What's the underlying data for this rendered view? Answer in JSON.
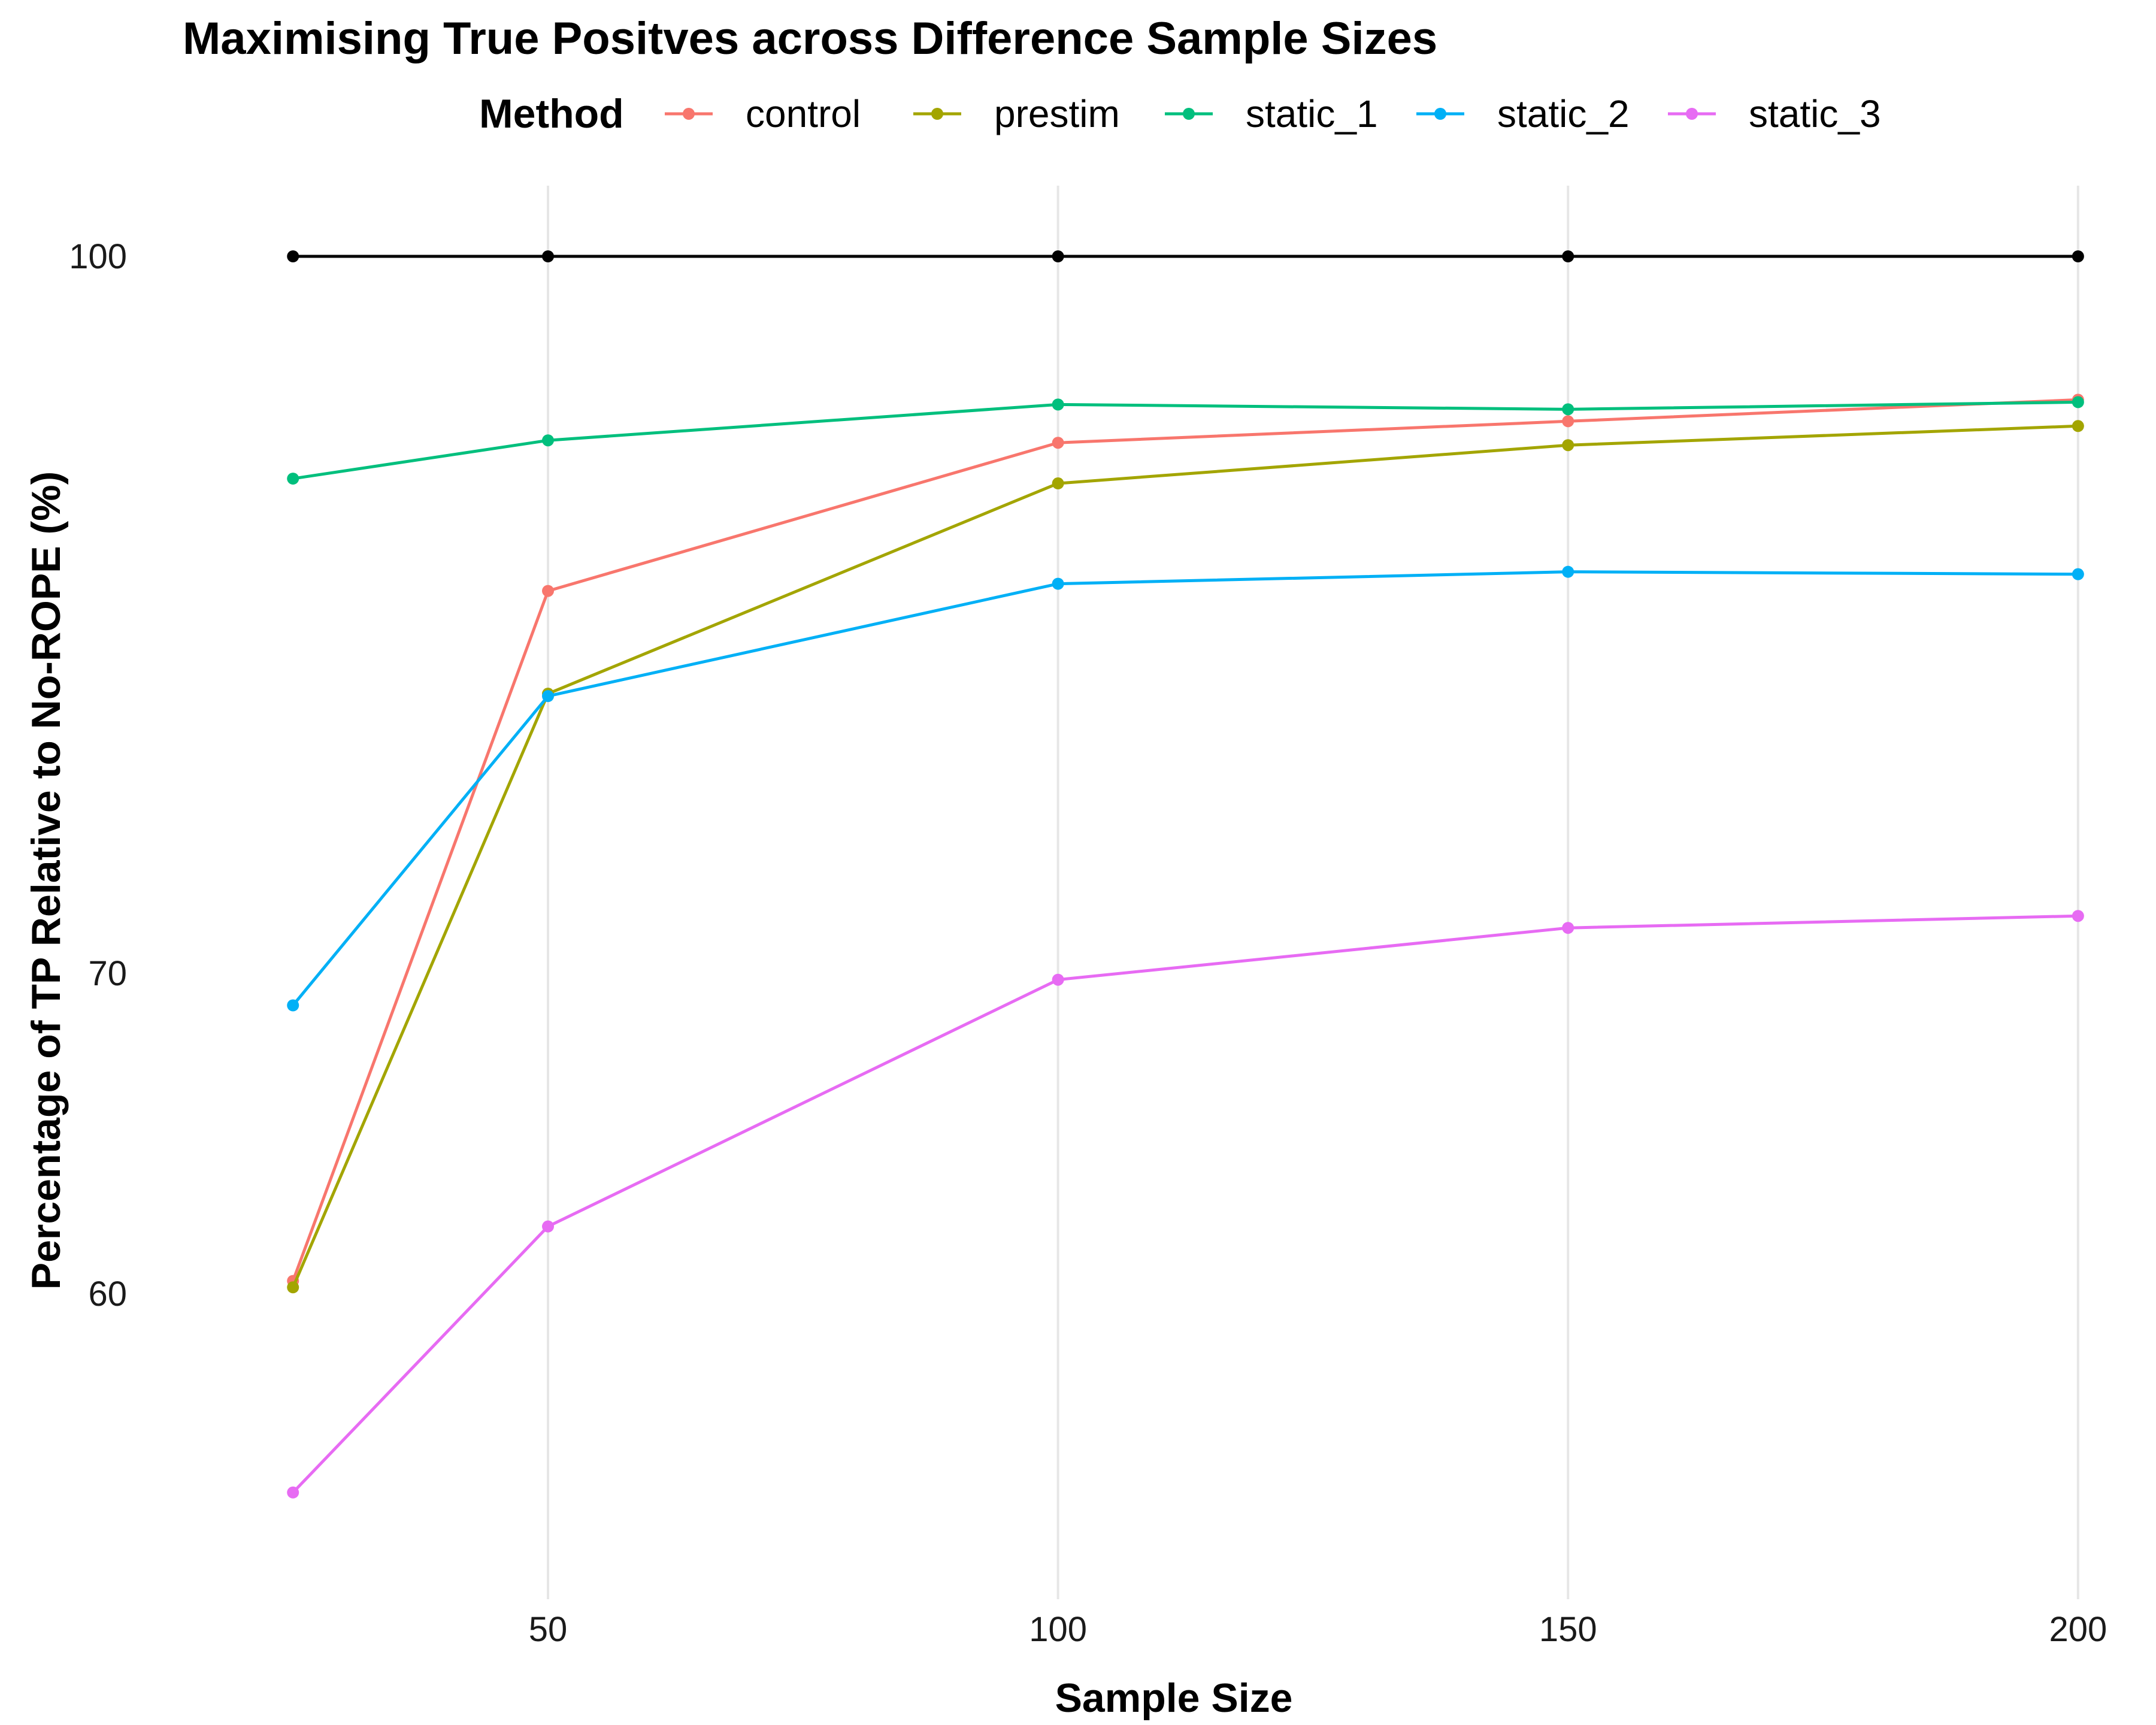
{
  "chart_data": {
    "type": "line",
    "title": "Maximising True Positves across Difference Sample Sizes",
    "xlabel": "Sample Size",
    "ylabel": "Percentage of TP Relative to No-ROPE (%)",
    "legend_title": "Method",
    "legend_position": "top",
    "grid": "vertical major only",
    "xlim": [
      18,
      205
    ],
    "ylim": [
      50,
      102.5
    ],
    "x_ticks": [
      50,
      100,
      150,
      200
    ],
    "y_ticks": [
      60,
      70,
      100
    ],
    "x": [
      25,
      50,
      100,
      150,
      200
    ],
    "reference": {
      "color": "#000000",
      "values": [
        100,
        100,
        100,
        100,
        100
      ]
    },
    "series": [
      {
        "name": "control",
        "color": "#F8766D",
        "values": [
          60.4,
          86.0,
          92.2,
          93.1,
          94.0
        ]
      },
      {
        "name": "prestim",
        "color": "#A3A500",
        "values": [
          60.2,
          81.7,
          90.5,
          92.1,
          92.9
        ]
      },
      {
        "name": "static_1",
        "color": "#00BF7D",
        "values": [
          90.7,
          92.3,
          93.8,
          93.6,
          93.9
        ]
      },
      {
        "name": "static_2",
        "color": "#00B0F6",
        "values": [
          69.0,
          81.6,
          86.3,
          86.8,
          86.7
        ]
      },
      {
        "name": "static_3",
        "color": "#E76BF3",
        "values": [
          52.1,
          62.1,
          69.8,
          71.9,
          72.4
        ]
      }
    ]
  }
}
